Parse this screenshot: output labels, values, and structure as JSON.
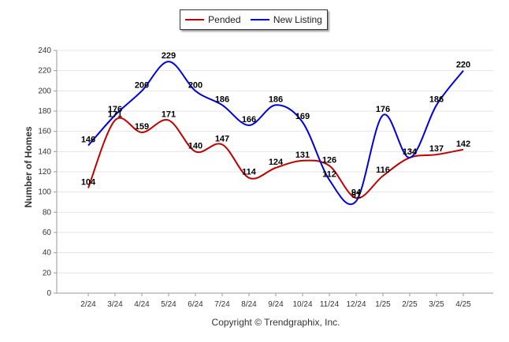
{
  "chart_data": {
    "type": "line",
    "ylabel": "Number of Homes",
    "ylim": [
      0,
      240
    ],
    "ytick_step": 20,
    "categories": [
      "2/24",
      "3/24",
      "4/24",
      "5/24",
      "6/24",
      "7/24",
      "8/24",
      "9/24",
      "10/24",
      "11/24",
      "12/24",
      "1/25",
      "2/25",
      "3/25",
      "4/25"
    ],
    "series": [
      {
        "name": "Pended",
        "color": "#c00000",
        "values": [
          104,
          171,
          159,
          171,
          140,
          147,
          114,
          124,
          131,
          126,
          94,
          116,
          134,
          137,
          142
        ]
      },
      {
        "name": "New Listing",
        "color": "#0000e0",
        "values": [
          146,
          176,
          200,
          229,
          200,
          186,
          166,
          186,
          169,
          112,
          91,
          176,
          134,
          186,
          220
        ]
      }
    ],
    "legend_position": "top-center",
    "grid": true
  },
  "footer": {
    "copyright": "Copyright © Trendgraphix, Inc."
  }
}
